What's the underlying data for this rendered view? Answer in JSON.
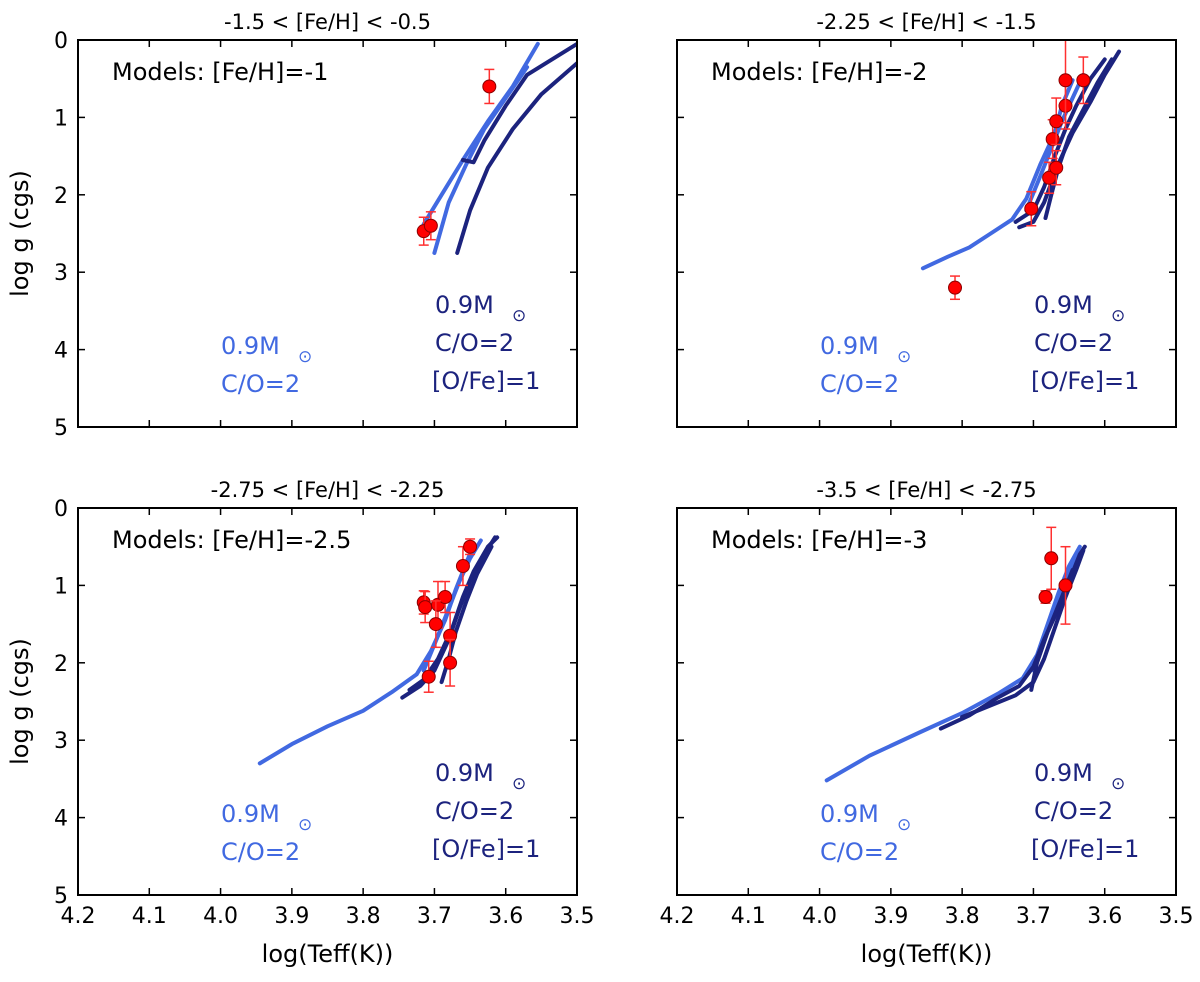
{
  "colors": {
    "light": "#4169e1",
    "dark": "#1c237e",
    "point": "#ff0000",
    "error": "#ff3030"
  },
  "chart_data": [
    {
      "type": "scatter",
      "title": "-1.5 < [Fe/H] < -0.5",
      "xlabel": "",
      "ylabel": "log g (cgs)",
      "xlim": [
        4.2,
        3.5
      ],
      "ylim": [
        0,
        5
      ],
      "y_inverted": true,
      "xticks": [
        "4.2",
        "4.1",
        "4.0",
        "3.9",
        "3.8",
        "3.7",
        "3.6",
        "3.5"
      ],
      "yticks": [
        "0",
        "1",
        "2",
        "3",
        "4",
        "5"
      ],
      "model_label": "Models: [Fe/H]=-1",
      "light_label": {
        "mass": "0.9M",
        "sun": "⊙",
        "co": "C/O=2"
      },
      "dark_label": {
        "mass": "0.9M",
        "sun": "⊙",
        "co": "C/O=2",
        "ofe": "[O/Fe]=1"
      },
      "points": [
        {
          "x": 3.715,
          "y": 2.47,
          "err": 0.18
        },
        {
          "x": 3.705,
          "y": 2.4,
          "err": 0.18
        },
        {
          "x": 3.623,
          "y": 0.6,
          "err": 0.22
        }
      ],
      "series": [
        {
          "name": "0.9Msun C/O=2",
          "color": "light",
          "points": [
            [
              3.715,
              2.38
            ],
            [
              3.69,
              2.0
            ],
            [
              3.66,
              1.55
            ],
            [
              3.625,
              1.05
            ],
            [
              3.59,
              0.6
            ],
            [
              3.555,
              0.05
            ]
          ]
        },
        {
          "name": "0.9Msun C/O=2",
          "color": "light",
          "points": [
            [
              3.7,
              2.75
            ],
            [
              3.68,
              2.1
            ],
            [
              3.655,
              1.6
            ],
            [
              3.63,
              1.15
            ],
            [
              3.6,
              0.75
            ],
            [
              3.57,
              0.35
            ]
          ]
        },
        {
          "name": "0.9Msun C/O=2 [O/Fe]=1",
          "color": "dark",
          "points": [
            [
              3.66,
              1.55
            ],
            [
              3.645,
              1.58
            ],
            [
              3.63,
              1.3
            ],
            [
              3.6,
              0.85
            ],
            [
              3.57,
              0.45
            ],
            [
              3.5,
              0.05
            ]
          ]
        },
        {
          "name": "0.9Msun C/O=2 [O/Fe]=1",
          "color": "dark",
          "points": [
            [
              3.668,
              2.75
            ],
            [
              3.65,
              2.2
            ],
            [
              3.625,
              1.65
            ],
            [
              3.59,
              1.15
            ],
            [
              3.55,
              0.7
            ],
            [
              3.5,
              0.3
            ]
          ]
        }
      ]
    },
    {
      "type": "scatter",
      "title": "-2.25 < [Fe/H] < -1.5",
      "xlabel": "",
      "ylabel": "",
      "xlim": [
        4.2,
        3.5
      ],
      "ylim": [
        0,
        5
      ],
      "y_inverted": true,
      "xticks": [
        "4.2",
        "4.1",
        "4.0",
        "3.9",
        "3.8",
        "3.7",
        "3.6",
        "3.5"
      ],
      "yticks": [
        "0",
        "1",
        "2",
        "3",
        "4",
        "5"
      ],
      "model_label": "Models: [Fe/H]=-2",
      "light_label": {
        "mass": "0.9M",
        "sun": "⊙",
        "co": "C/O=2"
      },
      "dark_label": {
        "mass": "0.9M",
        "sun": "⊙",
        "co": "C/O=2",
        "ofe": "[O/Fe]=1"
      },
      "points": [
        {
          "x": 3.81,
          "y": 3.2,
          "err": 0.15
        },
        {
          "x": 3.703,
          "y": 2.18,
          "err": 0.22
        },
        {
          "x": 3.678,
          "y": 1.78,
          "err": 0.2
        },
        {
          "x": 3.668,
          "y": 1.65,
          "err": 0.22
        },
        {
          "x": 3.673,
          "y": 1.28,
          "err": 0.25
        },
        {
          "x": 3.668,
          "y": 1.05,
          "err": 0.3
        },
        {
          "x": 3.655,
          "y": 0.85,
          "err": 0.3
        },
        {
          "x": 3.655,
          "y": 0.52,
          "err": 0.55
        },
        {
          "x": 3.63,
          "y": 0.52,
          "err": 0.3
        }
      ],
      "series": [
        {
          "name": "0.9Msun C/O=2",
          "color": "light",
          "points": [
            [
              3.855,
              2.95
            ],
            [
              3.82,
              2.8
            ],
            [
              3.79,
              2.68
            ],
            [
              3.76,
              2.5
            ],
            [
              3.73,
              2.32
            ],
            [
              3.71,
              2.05
            ],
            [
              3.69,
              1.6
            ],
            [
              3.67,
              1.2
            ],
            [
              3.66,
              0.85
            ],
            [
              3.645,
              0.52
            ]
          ]
        },
        {
          "name": "0.9Msun C/O=2",
          "color": "light",
          "points": [
            [
              3.71,
              2.2
            ],
            [
              3.69,
              1.75
            ],
            [
              3.675,
              1.4
            ],
            [
              3.66,
              1.05
            ],
            [
              3.645,
              0.75
            ],
            [
              3.63,
              0.45
            ]
          ]
        },
        {
          "name": "0.9Msun C/O=2 [O/Fe]=1",
          "color": "dark",
          "points": [
            [
              3.725,
              2.35
            ],
            [
              3.7,
              2.2
            ],
            [
              3.685,
              1.9
            ],
            [
              3.67,
              1.5
            ],
            [
              3.655,
              1.15
            ],
            [
              3.64,
              0.85
            ],
            [
              3.62,
              0.5
            ],
            [
              3.6,
              0.25
            ]
          ]
        },
        {
          "name": "0.9Msun C/O=2 [O/Fe]=1",
          "color": "dark",
          "points": [
            [
              3.72,
              2.42
            ],
            [
              3.7,
              2.35
            ],
            [
              3.685,
              2.1
            ],
            [
              3.665,
              1.6
            ],
            [
              3.645,
              1.2
            ],
            [
              3.62,
              0.8
            ],
            [
              3.6,
              0.45
            ],
            [
              3.58,
              0.15
            ]
          ]
        },
        {
          "name": "0.9Msun C/O=2 [O/Fe]=1",
          "color": "dark",
          "points": [
            [
              3.683,
              2.3
            ],
            [
              3.675,
              2.0
            ],
            [
              3.665,
              1.65
            ],
            [
              3.65,
              1.25
            ],
            [
              3.63,
              0.9
            ],
            [
              3.61,
              0.55
            ],
            [
              3.59,
              0.25
            ]
          ]
        }
      ]
    },
    {
      "type": "scatter",
      "title": "-2.75 < [Fe/H] < -2.25",
      "xlabel": "log(Teff(K))",
      "ylabel": "log g (cgs)",
      "xlim": [
        4.2,
        3.5
      ],
      "ylim": [
        0,
        5
      ],
      "y_inverted": true,
      "xticks": [
        "4.2",
        "4.1",
        "4.0",
        "3.9",
        "3.8",
        "3.7",
        "3.6",
        "3.5"
      ],
      "yticks": [
        "0",
        "1",
        "2",
        "3",
        "4",
        "5"
      ],
      "model_label": "Models: [Fe/H]=-2.5",
      "light_label": {
        "mass": "0.9M",
        "sun": "⊙",
        "co": "C/O=2"
      },
      "dark_label": {
        "mass": "0.9M",
        "sun": "⊙",
        "co": "C/O=2",
        "ofe": "[O/Fe]=1"
      },
      "points": [
        {
          "x": 3.715,
          "y": 1.22,
          "err": 0.15
        },
        {
          "x": 3.713,
          "y": 1.28,
          "err": 0.2
        },
        {
          "x": 3.695,
          "y": 1.25,
          "err": 0.3
        },
        {
          "x": 3.685,
          "y": 1.15,
          "err": 0.2
        },
        {
          "x": 3.698,
          "y": 1.5,
          "err": 0.3
        },
        {
          "x": 3.678,
          "y": 1.65,
          "err": 0.3
        },
        {
          "x": 3.678,
          "y": 2.0,
          "err": 0.3
        },
        {
          "x": 3.708,
          "y": 2.18,
          "err": 0.2
        },
        {
          "x": 3.66,
          "y": 0.75,
          "err": 0.25
        },
        {
          "x": 3.65,
          "y": 0.5,
          "err": 0.1
        }
      ],
      "series": [
        {
          "name": "0.9Msun C/O=2",
          "color": "light",
          "points": [
            [
              3.945,
              3.3
            ],
            [
              3.9,
              3.05
            ],
            [
              3.85,
              2.82
            ],
            [
              3.8,
              2.62
            ],
            [
              3.76,
              2.38
            ],
            [
              3.725,
              2.15
            ],
            [
              3.705,
              1.85
            ],
            [
              3.685,
              1.45
            ],
            [
              3.67,
              1.05
            ],
            [
              3.655,
              0.7
            ],
            [
              3.645,
              0.48
            ]
          ]
        },
        {
          "name": "0.9Msun C/O=2",
          "color": "light",
          "points": [
            [
              3.715,
              2.1
            ],
            [
              3.695,
              1.65
            ],
            [
              3.68,
              1.3
            ],
            [
              3.665,
              0.95
            ],
            [
              3.65,
              0.65
            ],
            [
              3.635,
              0.42
            ]
          ]
        },
        {
          "name": "0.9Msun C/O=2 [O/Fe]=1",
          "color": "dark",
          "points": [
            [
              3.745,
              2.45
            ],
            [
              3.72,
              2.3
            ],
            [
              3.7,
              2.1
            ],
            [
              3.68,
              1.7
            ],
            [
              3.665,
              1.3
            ],
            [
              3.65,
              0.95
            ],
            [
              3.63,
              0.6
            ],
            [
              3.615,
              0.38
            ]
          ]
        },
        {
          "name": "0.9Msun C/O=2 [O/Fe]=1",
          "color": "dark",
          "points": [
            [
              3.735,
              2.35
            ],
            [
              3.715,
              2.22
            ],
            [
              3.695,
              1.95
            ],
            [
              3.675,
              1.55
            ],
            [
              3.66,
              1.15
            ],
            [
              3.645,
              0.82
            ],
            [
              3.625,
              0.5
            ],
            [
              3.612,
              0.38
            ]
          ]
        },
        {
          "name": "0.9Msun C/O=2 [O/Fe]=1",
          "color": "dark",
          "points": [
            [
              3.69,
              2.25
            ],
            [
              3.68,
              1.95
            ],
            [
              3.67,
              1.6
            ],
            [
              3.655,
              1.2
            ],
            [
              3.64,
              0.85
            ],
            [
              3.62,
              0.5
            ]
          ]
        }
      ]
    },
    {
      "type": "scatter",
      "title": "-3.5 < [Fe/H] < -2.75",
      "xlabel": "log(Teff(K))",
      "ylabel": "",
      "xlim": [
        4.2,
        3.5
      ],
      "ylim": [
        0,
        5
      ],
      "y_inverted": true,
      "xticks": [
        "4.2",
        "4.1",
        "4.0",
        "3.9",
        "3.8",
        "3.7",
        "3.6",
        "3.5"
      ],
      "yticks": [
        "0",
        "1",
        "2",
        "3",
        "4",
        "5"
      ],
      "model_label": "Models: [Fe/H]=-3",
      "light_label": {
        "mass": "0.9M",
        "sun": "⊙",
        "co": "C/O=2"
      },
      "dark_label": {
        "mass": "0.9M",
        "sun": "⊙",
        "co": "C/O=2",
        "ofe": "[O/Fe]=1"
      },
      "points": [
        {
          "x": 3.675,
          "y": 0.65,
          "err": 0.4
        },
        {
          "x": 3.683,
          "y": 1.15,
          "err": 0.08
        },
        {
          "x": 3.655,
          "y": 1.0,
          "err": 0.5
        }
      ],
      "series": [
        {
          "name": "0.9Msun C/O=2",
          "color": "light",
          "points": [
            [
              3.99,
              3.52
            ],
            [
              3.93,
              3.2
            ],
            [
              3.86,
              2.9
            ],
            [
              3.8,
              2.65
            ],
            [
              3.75,
              2.4
            ],
            [
              3.715,
              2.2
            ],
            [
              3.695,
              1.9
            ],
            [
              3.68,
              1.5
            ],
            [
              3.665,
              1.1
            ],
            [
              3.65,
              0.75
            ],
            [
              3.635,
              0.5
            ]
          ]
        },
        {
          "name": "0.9Msun C/O=2",
          "color": "light",
          "points": [
            [
              3.7,
              2.1
            ],
            [
              3.685,
              1.7
            ],
            [
              3.67,
              1.3
            ],
            [
              3.655,
              0.95
            ],
            [
              3.64,
              0.6
            ]
          ]
        },
        {
          "name": "0.9Msun C/O=2 [O/Fe]=1",
          "color": "dark",
          "points": [
            [
              3.83,
              2.85
            ],
            [
              3.79,
              2.68
            ],
            [
              3.75,
              2.45
            ],
            [
              3.72,
              2.3
            ],
            [
              3.7,
              2.05
            ],
            [
              3.685,
              1.7
            ],
            [
              3.665,
              1.3
            ],
            [
              3.65,
              0.95
            ],
            [
              3.635,
              0.6
            ],
            [
              3.628,
              0.5
            ]
          ]
        },
        {
          "name": "0.9Msun C/O=2 [O/Fe]=1",
          "color": "dark",
          "points": [
            [
              3.8,
              2.7
            ],
            [
              3.76,
              2.55
            ],
            [
              3.725,
              2.42
            ],
            [
              3.7,
              2.25
            ],
            [
              3.685,
              1.95
            ],
            [
              3.67,
              1.55
            ],
            [
              3.655,
              1.15
            ],
            [
              3.64,
              0.8
            ],
            [
              3.63,
              0.55
            ]
          ]
        },
        {
          "name": "0.9Msun C/O=2 [O/Fe]=1",
          "color": "dark",
          "points": [
            [
              3.703,
              2.35
            ],
            [
              3.695,
              2.0
            ],
            [
              3.68,
              1.6
            ],
            [
              3.66,
              1.15
            ],
            [
              3.645,
              0.8
            ]
          ]
        }
      ]
    }
  ]
}
